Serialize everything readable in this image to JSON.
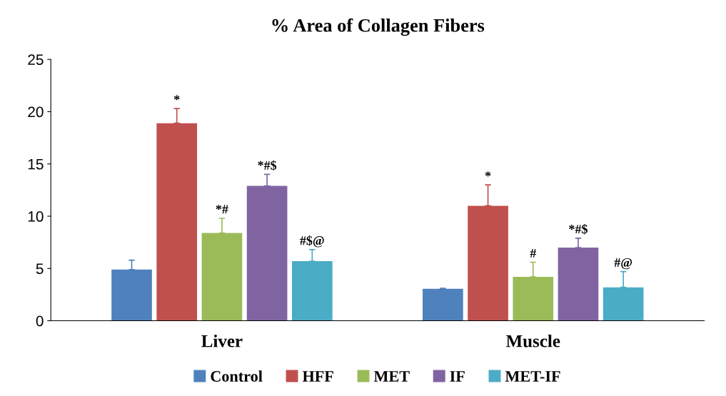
{
  "chart_data": {
    "type": "bar",
    "title": "% Area of Collagen Fibers",
    "categories": [
      "Liver",
      "Muscle"
    ],
    "series": [
      {
        "name": "Control",
        "color": "#4f81bd",
        "values": [
          4.9,
          3.05
        ],
        "errors": [
          [
            4.9,
            5.8
          ],
          [
            3.05,
            3.1
          ]
        ],
        "value_labels": [
          null,
          null
        ]
      },
      {
        "name": "HFF",
        "color": "#c0504d",
        "values": [
          18.9,
          11.0
        ],
        "errors": [
          [
            18.9,
            20.3
          ],
          [
            11.0,
            13.0
          ]
        ],
        "value_labels": [
          "*",
          "*"
        ]
      },
      {
        "name": "MET",
        "color": "#9bbb59",
        "values": [
          8.4,
          4.2
        ],
        "errors": [
          [
            8.4,
            9.8
          ],
          [
            4.2,
            5.6
          ]
        ],
        "value_labels": [
          "*#",
          "#"
        ]
      },
      {
        "name": "IF",
        "color": "#8064a2",
        "values": [
          12.9,
          7.0
        ],
        "errors": [
          [
            12.9,
            14.0
          ],
          [
            7.0,
            7.9
          ]
        ],
        "value_labels": [
          "*#$",
          "*#$"
        ]
      },
      {
        "name": "MET-IF",
        "color": "#4bacc6",
        "values": [
          5.7,
          3.2
        ],
        "errors": [
          [
            5.7,
            6.8
          ],
          [
            3.2,
            4.7
          ]
        ],
        "value_labels": [
          "#$@",
          "#@"
        ]
      }
    ],
    "ylim": [
      0,
      25
    ],
    "yticks": [
      0,
      5,
      10,
      15,
      20,
      25
    ],
    "grid": false,
    "legend": "bottom"
  }
}
